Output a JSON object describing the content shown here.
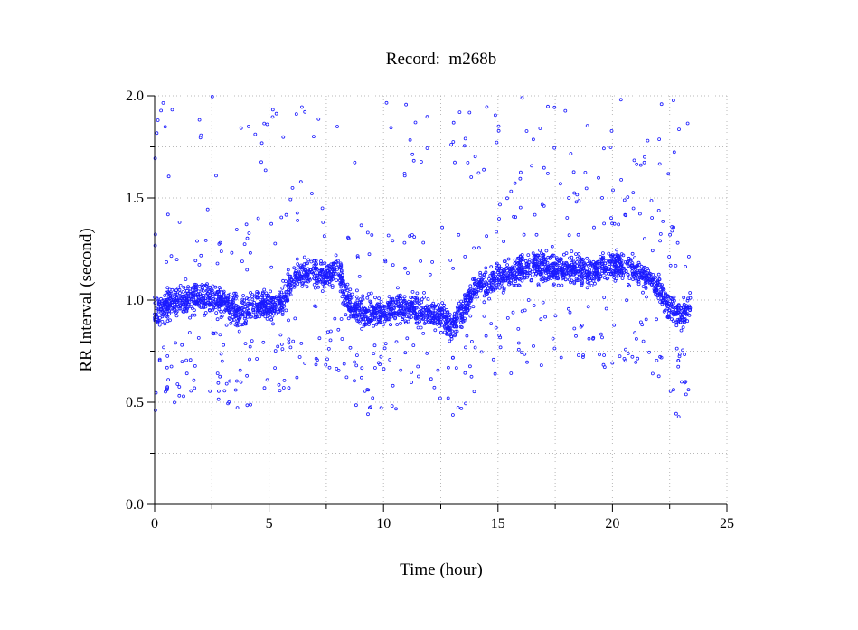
{
  "chart_data": {
    "type": "scatter",
    "title": "Record:  m268b",
    "xlabel": "Time (hour)",
    "ylabel": "RR Interval (second)",
    "xlim": [
      0,
      25
    ],
    "ylim": [
      0.0,
      2.0
    ],
    "x_ticks": [
      0,
      5,
      10,
      15,
      20,
      25
    ],
    "x_tick_labels": [
      "0",
      "5",
      "10",
      "15",
      "20",
      "25"
    ],
    "x_minor_ticks": [
      2.5,
      7.5,
      12.5,
      17.5,
      22.5
    ],
    "y_ticks": [
      0.0,
      0.5,
      1.0,
      1.5,
      2.0
    ],
    "y_tick_labels": [
      "0.0",
      "0.5",
      "1.0",
      "1.5",
      "2.0"
    ],
    "y_minor_ticks": [
      0.25,
      0.75,
      1.25,
      1.75
    ],
    "grid": true,
    "marker": "circle",
    "color": "#1a1aff",
    "trend_x": [
      0,
      0.5,
      1,
      1.5,
      2,
      2.5,
      3,
      3.5,
      4,
      4.5,
      5,
      5.5,
      6,
      6.5,
      7,
      7.5,
      8,
      8.5,
      9,
      9.5,
      10,
      10.5,
      11,
      11.5,
      12,
      12.5,
      13,
      13.5,
      14,
      14.5,
      15,
      15.5,
      16,
      16.5,
      17,
      17.5,
      18,
      18.5,
      19,
      19.5,
      20,
      20.5,
      21,
      21.5,
      22,
      22.5,
      23,
      23.4
    ],
    "trend_y": [
      0.95,
      0.97,
      0.99,
      1.0,
      1.02,
      1.0,
      0.98,
      0.95,
      0.94,
      0.98,
      0.97,
      0.98,
      1.1,
      1.14,
      1.13,
      1.12,
      1.15,
      0.98,
      0.95,
      0.93,
      0.95,
      0.96,
      0.97,
      0.95,
      0.93,
      0.92,
      0.88,
      0.95,
      1.06,
      1.08,
      1.1,
      1.13,
      1.16,
      1.17,
      1.16,
      1.15,
      1.16,
      1.15,
      1.12,
      1.16,
      1.17,
      1.16,
      1.15,
      1.1,
      1.06,
      0.96,
      0.92,
      0.96
    ],
    "spread": 0.09
  }
}
